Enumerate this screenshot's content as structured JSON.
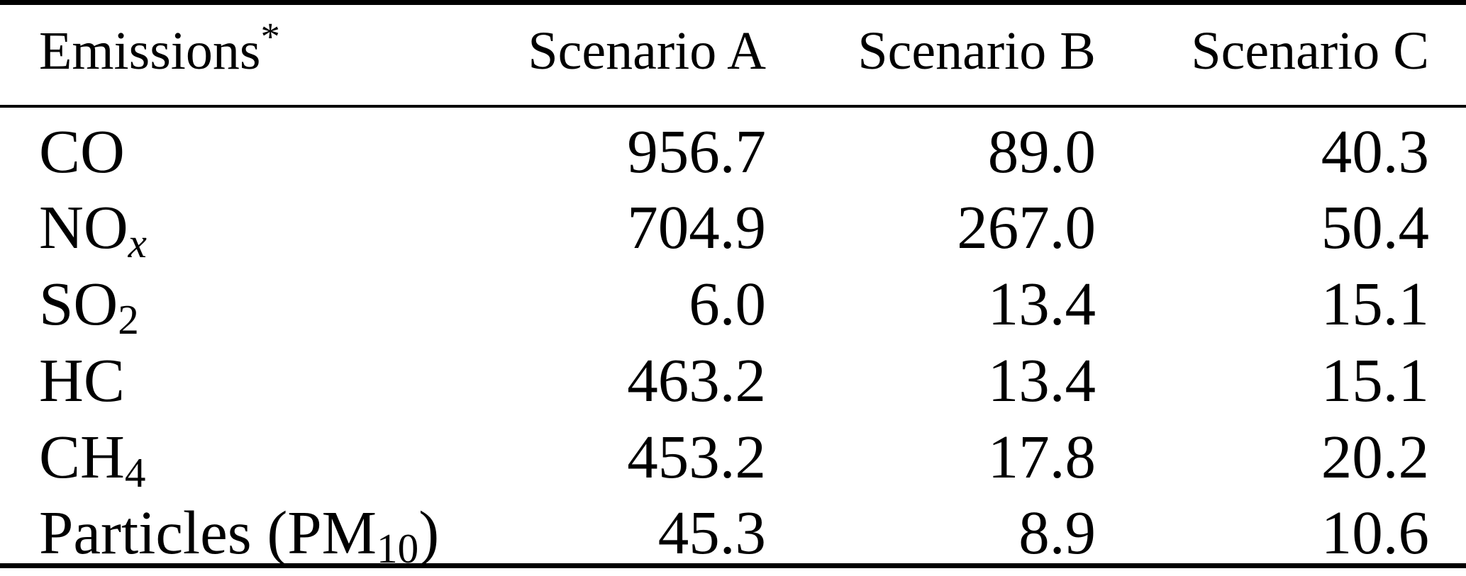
{
  "colors": {
    "background": "#ffffff",
    "text": "#000000",
    "rule": "#000000"
  },
  "table": {
    "columns": [
      {
        "key": "emissions",
        "align": "left",
        "label_parts": [
          {
            "text": "Emissions"
          },
          {
            "text": "*",
            "style": "sup"
          }
        ]
      },
      {
        "key": "scenario-a",
        "align": "right",
        "label_parts": [
          {
            "text": "Scenario A"
          }
        ]
      },
      {
        "key": "scenario-b",
        "align": "right",
        "label_parts": [
          {
            "text": "Scenario B"
          }
        ]
      },
      {
        "key": "scenario-c",
        "align": "right",
        "label_parts": [
          {
            "text": "Scenario C"
          }
        ]
      }
    ],
    "rows": [
      {
        "label_plain": "CO",
        "label_parts": [
          {
            "text": "CO"
          }
        ],
        "values": [
          "956.7",
          "89.0",
          "40.3"
        ]
      },
      {
        "label_plain": "NOx",
        "label_parts": [
          {
            "text": "NO"
          },
          {
            "text": "x",
            "style": "sub-italic"
          }
        ],
        "values": [
          "704.9",
          "267.0",
          "50.4"
        ]
      },
      {
        "label_plain": "SO2",
        "label_parts": [
          {
            "text": "SO"
          },
          {
            "text": "2",
            "style": "sub"
          }
        ],
        "values": [
          "6.0",
          "13.4",
          "15.1"
        ]
      },
      {
        "label_plain": "HC",
        "label_parts": [
          {
            "text": "HC"
          }
        ],
        "values": [
          "463.2",
          "13.4",
          "15.1"
        ]
      },
      {
        "label_plain": "CH4",
        "label_parts": [
          {
            "text": "CH"
          },
          {
            "text": "4",
            "style": "sub"
          }
        ],
        "values": [
          "453.2",
          "17.8",
          "20.2"
        ]
      },
      {
        "label_plain": "Particles (PM10)",
        "label_parts": [
          {
            "text": "Particles (PM"
          },
          {
            "text": "10",
            "style": "sub"
          },
          {
            "text": ")"
          }
        ],
        "values": [
          "45.3",
          "8.9",
          "10.6"
        ]
      }
    ]
  },
  "chart_data": {
    "type": "table",
    "title": "",
    "columns": [
      "Emissions*",
      "Scenario A",
      "Scenario B",
      "Scenario C"
    ],
    "categories": [
      "CO",
      "NOx",
      "SO2",
      "HC",
      "CH4",
      "Particles (PM10)"
    ],
    "series": [
      {
        "name": "Scenario A",
        "values": [
          956.7,
          704.9,
          6.0,
          463.2,
          453.2,
          45.3
        ]
      },
      {
        "name": "Scenario B",
        "values": [
          89.0,
          267.0,
          13.4,
          13.4,
          17.8,
          8.9
        ]
      },
      {
        "name": "Scenario C",
        "values": [
          40.3,
          50.4,
          15.1,
          15.1,
          20.2,
          10.6
        ]
      }
    ]
  }
}
